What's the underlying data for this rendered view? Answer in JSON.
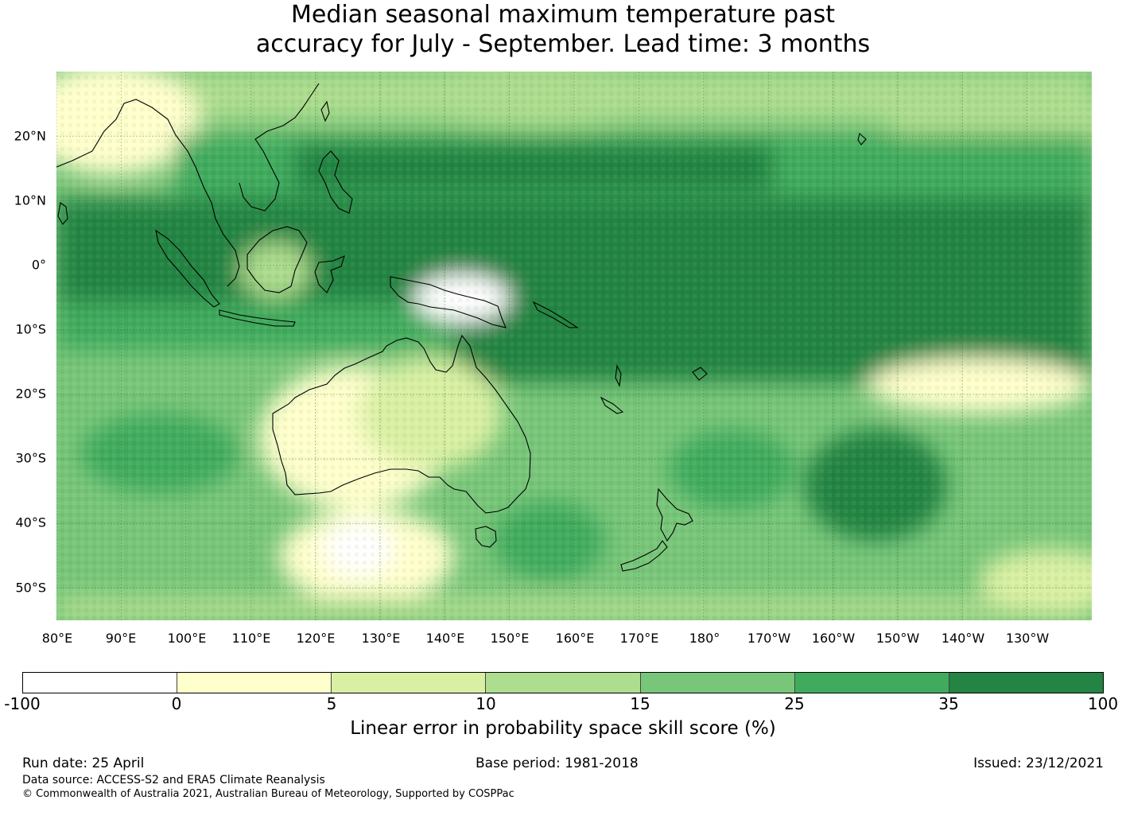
{
  "title": {
    "line1": "Median seasonal maximum temperature past",
    "line2": "accuracy for July - September. Lead time: 3 months"
  },
  "map": {
    "lat_labels": [
      "20°N",
      "10°N",
      "0°",
      "10°S",
      "20°S",
      "30°S",
      "40°S",
      "50°S"
    ],
    "lon_labels": [
      "80°E",
      "90°E",
      "100°E",
      "110°E",
      "120°E",
      "130°E",
      "140°E",
      "150°E",
      "160°E",
      "170°E",
      "180°",
      "170°W",
      "160°W",
      "150°W",
      "140°W",
      "130°W"
    ],
    "lat_range": [
      -55,
      30
    ],
    "lon_range": [
      80,
      240
    ],
    "grid": true
  },
  "colorbar": {
    "ticks": [
      "-100",
      "0",
      "5",
      "10",
      "15",
      "25",
      "35",
      "100"
    ],
    "colors": [
      "#ffffff",
      "#ffffcc",
      "#d9f0a3",
      "#addd8e",
      "#78c679",
      "#41ab5d",
      "#238443"
    ],
    "label": "Linear error in probability space skill score (%)"
  },
  "footer": {
    "run_date": "Run date: 25 April",
    "base_period": "Base period: 1981-2018",
    "issued": "Issued: 23/12/2021",
    "data_source": "Data source: ACCESS-S2 and ERA5 Climate Reanalysis",
    "copyright": "© Commonwealth of Australia 2021, Australian Bureau of Meteorology, Supported by COSPPac"
  }
}
